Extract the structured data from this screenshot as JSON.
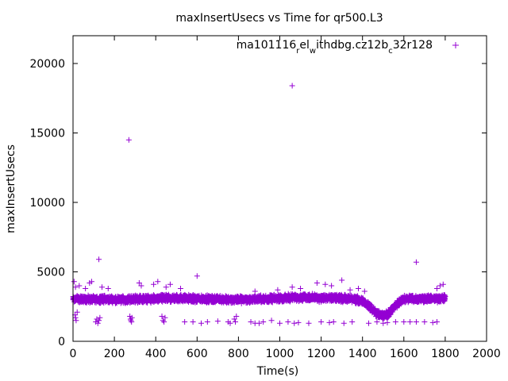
{
  "chart_data": {
    "type": "scatter",
    "title": "maxInsertUsecs vs Time for qr500.L3",
    "xlabel": "Time(s)",
    "ylabel": "maxInsertUsecs",
    "xlim": [
      0,
      2000
    ],
    "ylim": [
      0,
      22000
    ],
    "xticks": [
      "0",
      "200",
      "400",
      "600",
      "800",
      "1000",
      "1200",
      "1400",
      "1600",
      "1800",
      "2000"
    ],
    "yticks": [
      "0",
      "5000",
      "10000",
      "15000",
      "20000"
    ],
    "grid": false,
    "legend": {
      "position": "top-right",
      "prefix": "ma101116",
      "sub1": "r",
      "mid1": "el",
      "sub2": "w",
      "mid2": "ithdbg.cz12b",
      "sub3": "c",
      "suffix": "32r128"
    },
    "series": [
      {
        "color": "#9400d3",
        "marker": "plus",
        "baseline": {
          "x": [
            0,
            50,
            100,
            150,
            200,
            250,
            300,
            350,
            400,
            450,
            500,
            550,
            600,
            650,
            700,
            750,
            800,
            850,
            900,
            950,
            1000,
            1050,
            1100,
            1150,
            1200,
            1250,
            1300,
            1350,
            1400,
            1420,
            1440,
            1460,
            1480,
            1500,
            1520,
            1540,
            1560,
            1600,
            1650,
            1700,
            1750,
            1800
          ],
          "y": [
            3050,
            3050,
            3000,
            3050,
            3000,
            3000,
            3050,
            3050,
            3050,
            3100,
            3100,
            3100,
            3050,
            3050,
            3050,
            3000,
            3000,
            3000,
            3050,
            3050,
            3100,
            3150,
            3150,
            3150,
            3100,
            3100,
            3100,
            3050,
            2900,
            2700,
            2400,
            2100,
            1900,
            1850,
            1950,
            2200,
            2600,
            3050,
            3050,
            3050,
            3050,
            3100
          ]
        },
        "spread": 300,
        "density_per_second": 2,
        "low_points": [
          [
            10,
            1900
          ],
          [
            12,
            1700
          ],
          [
            15,
            1500
          ],
          [
            20,
            2100
          ],
          [
            110,
            1400
          ],
          [
            115,
            1600
          ],
          [
            120,
            1300
          ],
          [
            125,
            1500
          ],
          [
            130,
            1700
          ],
          [
            275,
            1800
          ],
          [
            278,
            1600
          ],
          [
            280,
            1500
          ],
          [
            283,
            1400
          ],
          [
            285,
            1700
          ],
          [
            430,
            1800
          ],
          [
            435,
            1500
          ],
          [
            440,
            1400
          ],
          [
            445,
            1700
          ],
          [
            540,
            1400
          ],
          [
            580,
            1400
          ],
          [
            620,
            1300
          ],
          [
            650,
            1400
          ],
          [
            700,
            1450
          ],
          [
            750,
            1400
          ],
          [
            760,
            1300
          ],
          [
            780,
            1600
          ],
          [
            785,
            1400
          ],
          [
            790,
            1800
          ],
          [
            860,
            1400
          ],
          [
            880,
            1300
          ],
          [
            900,
            1300
          ],
          [
            920,
            1400
          ],
          [
            960,
            1500
          ],
          [
            1000,
            1300
          ],
          [
            1040,
            1400
          ],
          [
            1070,
            1300
          ],
          [
            1090,
            1350
          ],
          [
            1140,
            1300
          ],
          [
            1200,
            1400
          ],
          [
            1240,
            1350
          ],
          [
            1260,
            1400
          ],
          [
            1310,
            1300
          ],
          [
            1350,
            1400
          ],
          [
            1430,
            1300
          ],
          [
            1470,
            1400
          ],
          [
            1500,
            1300
          ],
          [
            1520,
            1350
          ],
          [
            1560,
            1400
          ],
          [
            1600,
            1400
          ],
          [
            1630,
            1400
          ],
          [
            1660,
            1400
          ],
          [
            1700,
            1400
          ],
          [
            1740,
            1350
          ],
          [
            1760,
            1400
          ]
        ],
        "high_points": [
          [
            5,
            4300
          ],
          [
            12,
            3900
          ],
          [
            30,
            4000
          ],
          [
            60,
            3800
          ],
          [
            80,
            4200
          ],
          [
            90,
            4300
          ],
          [
            140,
            3900
          ],
          [
            170,
            3800
          ],
          [
            320,
            4200
          ],
          [
            330,
            4000
          ],
          [
            390,
            4100
          ],
          [
            410,
            4300
          ],
          [
            450,
            3900
          ],
          [
            470,
            4100
          ],
          [
            520,
            3800
          ],
          [
            880,
            3600
          ],
          [
            990,
            3700
          ],
          [
            1060,
            3900
          ],
          [
            1100,
            3800
          ],
          [
            1180,
            4200
          ],
          [
            1220,
            4100
          ],
          [
            1250,
            4000
          ],
          [
            1300,
            4400
          ],
          [
            1340,
            3700
          ],
          [
            1380,
            3800
          ],
          [
            1410,
            3600
          ],
          [
            1760,
            3800
          ],
          [
            1775,
            4000
          ],
          [
            1790,
            4100
          ]
        ],
        "outliers": [
          [
            125,
            5900
          ],
          [
            270,
            14500
          ],
          [
            600,
            4700
          ],
          [
            1060,
            18400
          ],
          [
            1660,
            5700
          ]
        ]
      }
    ]
  }
}
